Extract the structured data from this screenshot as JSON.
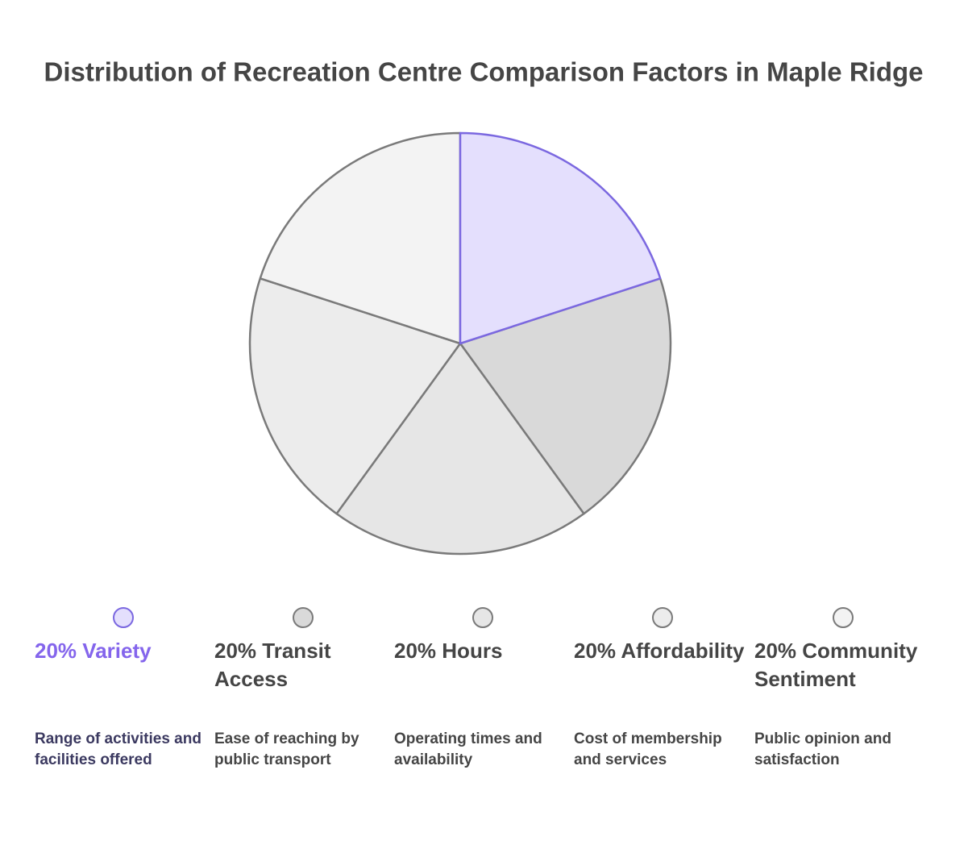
{
  "chart_data": {
    "type": "pie",
    "title": "Distribution of Recreation Centre Comparison Factors in Maple Ridge",
    "categories": [
      "Variety",
      "Transit Access",
      "Hours",
      "Affordability",
      "Community Sentiment"
    ],
    "values": [
      20,
      20,
      20,
      20,
      20
    ],
    "value_labels": [
      "20%",
      "20%",
      "20%",
      "20%",
      "20%"
    ],
    "descriptions": [
      "Range of activities and facilities offered",
      "Ease of reaching by public transport",
      "Operating times and availability",
      "Cost of membership and services",
      "Public opinion and satisfaction"
    ],
    "colors": [
      "#e4dffd",
      "#d9d9d9",
      "#e6e6e6",
      "#ececec",
      "#f3f3f3"
    ],
    "edge_colors": [
      "#7b68e0",
      "#7a7a7a",
      "#7a7a7a",
      "#7a7a7a",
      "#7a7a7a"
    ],
    "label_colors": [
      "#8465ec",
      "#454545",
      "#454545",
      "#454545",
      "#454545"
    ],
    "description_colors": [
      "#3b3960",
      "#454545",
      "#454545",
      "#454545",
      "#454545"
    ]
  }
}
